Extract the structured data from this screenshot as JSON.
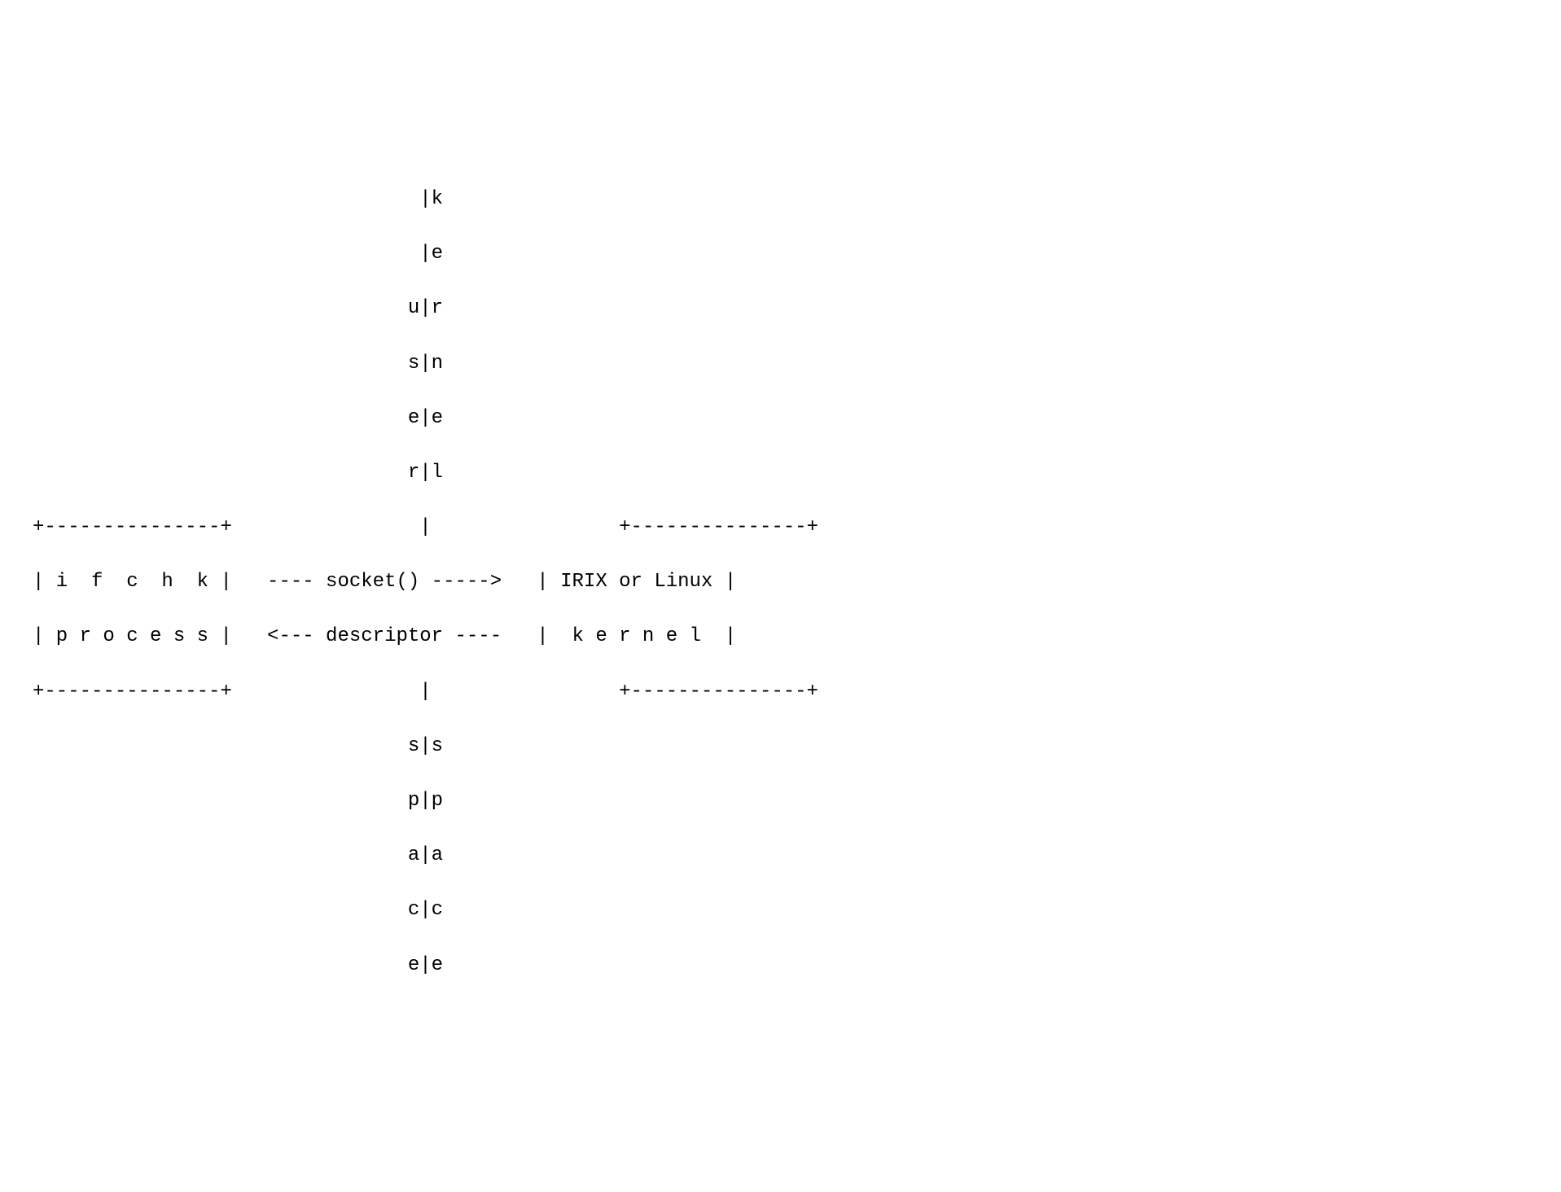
{
  "diagram": {
    "type": "ascii-art",
    "font_family": "Courier New",
    "font_size_pt": 18,
    "text_color": "#000000",
    "background_color": "#ffffff",
    "line_height": 1.4,
    "left_box": {
      "line1": "i  f  c  h  k",
      "line2": "p r o c e s s"
    },
    "right_box": {
      "line1": "IRIX or Linux",
      "line2": "k e r n e l"
    },
    "center_labels": {
      "top_arrow": "---- socket() ----->",
      "bottom_arrow": "<--- descriptor ----"
    },
    "vertical_top_left": "user",
    "vertical_top_right": "kernel",
    "vertical_bottom_left": "space",
    "vertical_bottom_right": "space",
    "lines": [
      "                                 |k",
      "                                 |e",
      "                                u|r",
      "                                s|n",
      "                                e|e",
      "                                r|l",
      "+---------------+                |                +---------------+",
      "| i  f  c  h  k |   ---- socket() ----->   | IRIX or Linux |",
      "| p r o c e s s |   <--- descriptor ----   |  k e r n e l  |",
      "+---------------+                |                +---------------+",
      "                                s|s",
      "                                p|p",
      "                                a|a",
      "                                c|c",
      "                                e|e"
    ]
  }
}
